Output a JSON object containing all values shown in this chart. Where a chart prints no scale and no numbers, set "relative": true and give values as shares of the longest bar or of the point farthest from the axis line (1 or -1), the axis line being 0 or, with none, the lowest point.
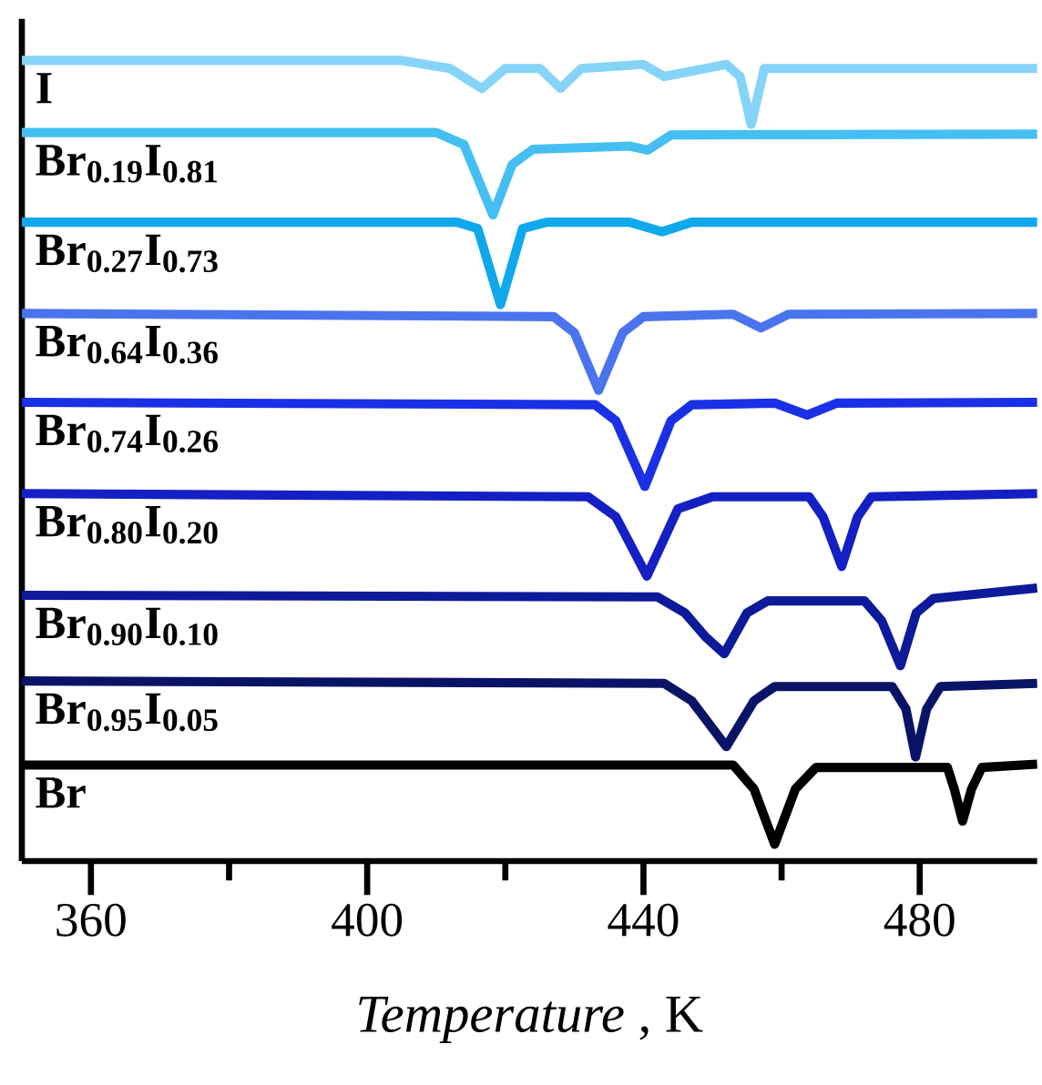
{
  "chart_data": {
    "type": "line",
    "relative": true,
    "xlabel": "*Temperature* , K",
    "xlim": [
      350,
      497
    ],
    "xticks": [
      360,
      {
        "value": 380,
        "label": null
      },
      400,
      {
        "value": 420,
        "label": null
      },
      440,
      {
        "value": 460,
        "label": null
      },
      480
    ],
    "legend": false,
    "series": [
      {
        "name": "I",
        "color": "#85d4f7",
        "x": [
          350,
          405,
          412,
          416.6,
          420,
          425,
          428,
          431,
          440,
          443,
          452,
          454,
          455.6,
          457.5,
          497
        ],
        "values": [
          1.0,
          1.0,
          0.99,
          0.965,
          0.99,
          0.99,
          0.965,
          0.99,
          0.995,
          0.98,
          0.995,
          0.98,
          0.92,
          0.99,
          0.99
        ]
      },
      {
        "name": "Br$_{0.19}$I$_{0.81}$",
        "color": "#45bff2",
        "x": [
          350,
          410,
          414,
          418.2,
          421,
          424,
          438,
          440.6,
          444,
          497
        ],
        "values": [
          0.91,
          0.91,
          0.895,
          0.807,
          0.87,
          0.889,
          0.893,
          0.888,
          0.907,
          0.908
        ]
      },
      {
        "name": "Br$_{0.27}$I$_{0.73}$",
        "color": "#10a8ec",
        "x": [
          350,
          413,
          416,
          419.3,
          422.5,
          426,
          438,
          442.7,
          447,
          497
        ],
        "values": [
          0.798,
          0.798,
          0.79,
          0.695,
          0.79,
          0.798,
          0.798,
          0.786,
          0.798,
          0.798
        ]
      },
      {
        "name": "Br$_{0.64}$I$_{0.36}$",
        "color": "#4a74ee",
        "x": [
          350,
          427,
          430,
          433.5,
          437,
          440,
          453,
          457,
          461,
          497
        ],
        "values": [
          0.684,
          0.68,
          0.66,
          0.588,
          0.66,
          0.68,
          0.683,
          0.666,
          0.683,
          0.684
        ]
      },
      {
        "name": "Br$_{0.74}$I$_{0.26}$",
        "color": "#1a30e6",
        "x": [
          350,
          433,
          436,
          440.2,
          444,
          447,
          459,
          463.7,
          468,
          497
        ],
        "values": [
          0.573,
          0.57,
          0.55,
          0.468,
          0.55,
          0.57,
          0.572,
          0.557,
          0.572,
          0.573
        ]
      },
      {
        "name": "Br$_{0.80}$I$_{0.20}$",
        "color": "#1420c4",
        "x": [
          350,
          432,
          436,
          440.5,
          445,
          450,
          464,
          466,
          468.7,
          471,
          473,
          497
        ],
        "values": [
          0.459,
          0.455,
          0.43,
          0.356,
          0.44,
          0.455,
          0.455,
          0.43,
          0.368,
          0.43,
          0.455,
          0.459
        ]
      },
      {
        "name": "Br$_{0.90}$I$_{0.10}$",
        "color": "#0d1a99",
        "x": [
          350,
          442,
          446,
          449,
          451.7,
          455,
          458,
          472,
          474.5,
          477.2,
          479.5,
          482,
          497
        ],
        "values": [
          0.332,
          0.33,
          0.31,
          0.28,
          0.259,
          0.31,
          0.325,
          0.325,
          0.3,
          0.244,
          0.31,
          0.328,
          0.341
        ]
      },
      {
        "name": "Br$_{0.95}$I$_{0.05}$",
        "color": "#0a1466",
        "x": [
          350,
          443,
          447,
          452,
          456,
          459,
          476,
          478,
          479.4,
          481,
          483,
          497
        ],
        "values": [
          0.225,
          0.222,
          0.2,
          0.143,
          0.2,
          0.218,
          0.218,
          0.19,
          0.13,
          0.19,
          0.218,
          0.222
        ]
      },
      {
        "name": "Br",
        "color": "#000000",
        "x": [
          350,
          453,
          456,
          459,
          462,
          465,
          484,
          485,
          486.2,
          487.5,
          489,
          497
        ],
        "values": [
          0.12,
          0.12,
          0.09,
          0.021,
          0.09,
          0.117,
          0.117,
          0.09,
          0.05,
          0.09,
          0.117,
          0.121
        ]
      }
    ]
  }
}
